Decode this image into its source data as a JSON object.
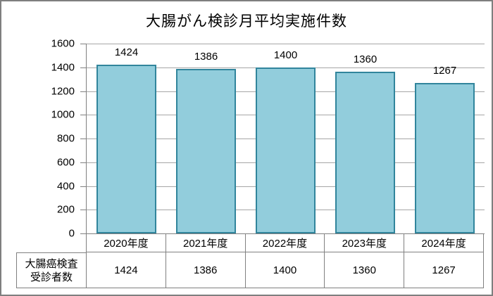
{
  "chart_data": {
    "type": "bar",
    "title": "大腸がん検診月平均実施件数",
    "categories": [
      "2020年度",
      "2021年度",
      "2022年度",
      "2023年度",
      "2024年度"
    ],
    "values": [
      1424,
      1386,
      1400,
      1360,
      1267
    ],
    "data_labels": [
      "1424",
      "1386",
      "1400",
      "1360",
      "1267"
    ],
    "xlabel": "",
    "ylabel": "",
    "ylim": [
      0,
      1600
    ],
    "ytick_step": 200,
    "ytick_labels": [
      "0",
      "200",
      "400",
      "600",
      "800",
      "1000",
      "1200",
      "1400",
      "1600"
    ],
    "grid": true,
    "legend_position": "none",
    "data_table": {
      "row_label_lines": [
        "大腸癌検査",
        "受診者数"
      ],
      "values": [
        "1424",
        "1386",
        "1400",
        "1360",
        "1267"
      ]
    },
    "colors": {
      "bar_fill": "#92CDDC",
      "bar_border": "#31859C",
      "gridline": "#A6A6A6",
      "axis": "#808080",
      "frame_border": "#7F7F7F",
      "text": "#000000",
      "background": "#FFFFFF"
    }
  }
}
